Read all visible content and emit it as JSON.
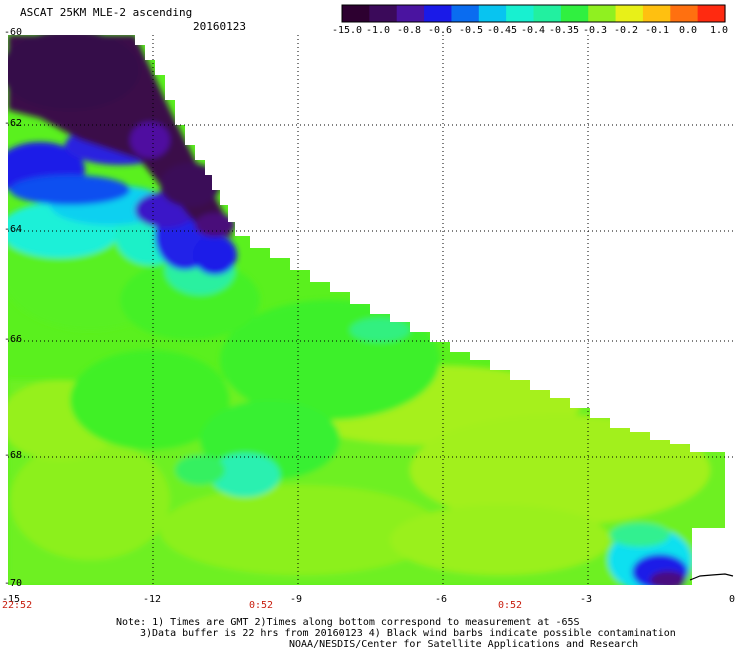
{
  "header": {
    "title": "ASCAT 25KM MLE-2 ascending",
    "date": "20160123"
  },
  "colorbar": {
    "colors": [
      "#2d0030",
      "#3b0a5a",
      "#4a14a0",
      "#1a1ae8",
      "#0a6cf0",
      "#08c4f0",
      "#18f0d0",
      "#22f0a0",
      "#30f040",
      "#90f020",
      "#e8f018",
      "#ffc010",
      "#ff7010",
      "#ff2a10"
    ],
    "labels": [
      "-15.0",
      "-1.0",
      "-0.8",
      "-0.6",
      "-0.5",
      "-0.45",
      "-0.4",
      "-0.35",
      "-0.3",
      "-0.2",
      "-0.1",
      "0.0",
      "1.0"
    ]
  },
  "map": {
    "lat_labels": [
      "-60",
      "-62",
      "-64",
      "-66",
      "-68",
      "-70"
    ],
    "lon_labels": [
      "-15",
      "-12",
      "-9",
      "-6",
      "-3",
      "0"
    ],
    "time_labels": [
      "22:52",
      "0:52",
      "0:52"
    ]
  },
  "notes": {
    "line1": "Note: 1) Times are GMT 2)Times along bottom correspond to measurement at -65S",
    "line2": "3)Data buffer is 22 hrs from 20160123 4) Black wind barbs indicate possible contamination",
    "line3": "NOAA/NESDIS/Center for Satellite Applications and Research"
  }
}
